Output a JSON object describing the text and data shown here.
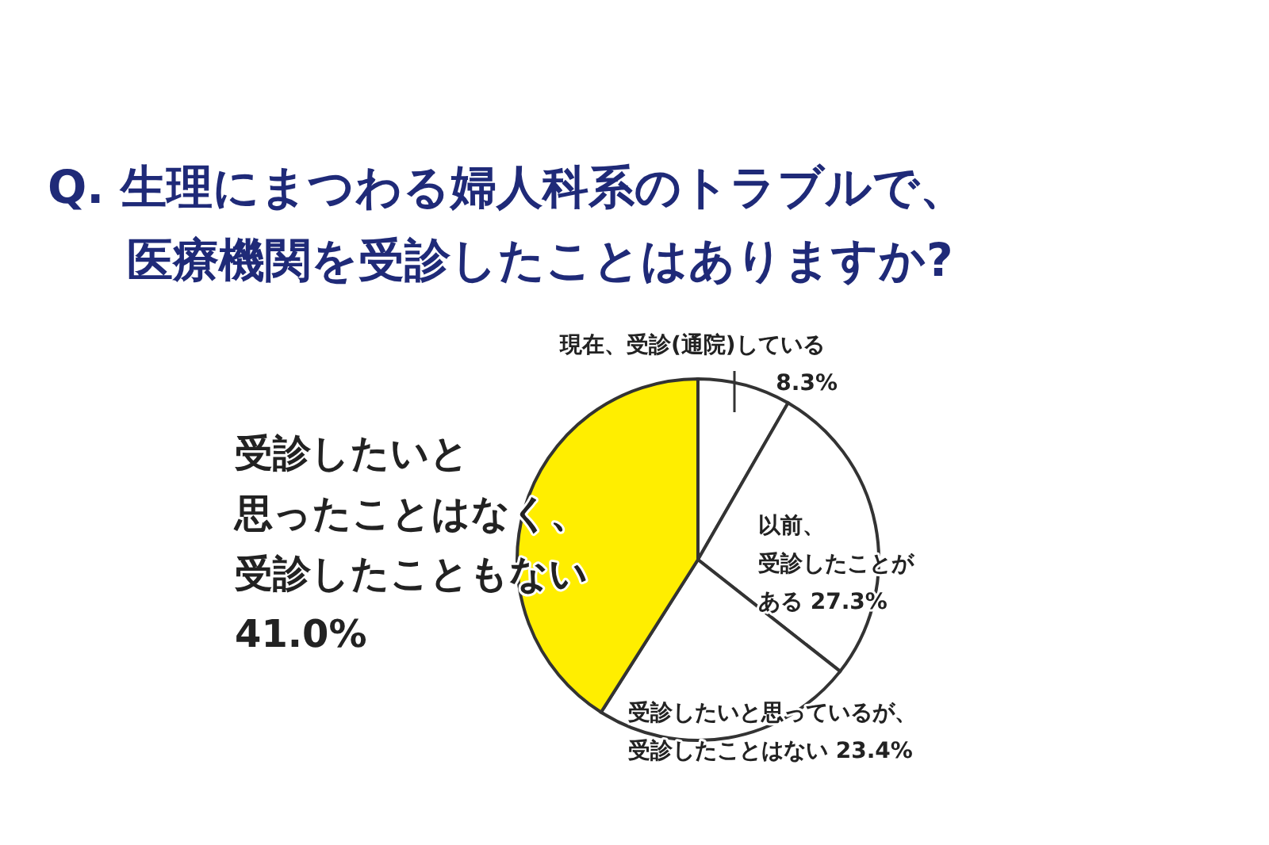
{
  "chart_data": {
    "type": "pie",
    "title": "Q. 生理にまつわる婦人科系のトラブルで、医療機関を受診したことはありますか?",
    "categories": [
      "現在、受診(通院)している",
      "以前、受診したことがある",
      "受診したいと思っているが、受診したことはない",
      "受診したいと思ったことはなく、受診したこともない"
    ],
    "values": [
      8.3,
      27.3,
      23.4,
      41.0
    ],
    "colors": [
      "#ffffff",
      "#ffffff",
      "#ffffff",
      "#ffee00"
    ],
    "value_labels": [
      "8.3%",
      "27.3%",
      "23.4%",
      "41.0%"
    ]
  }
}
